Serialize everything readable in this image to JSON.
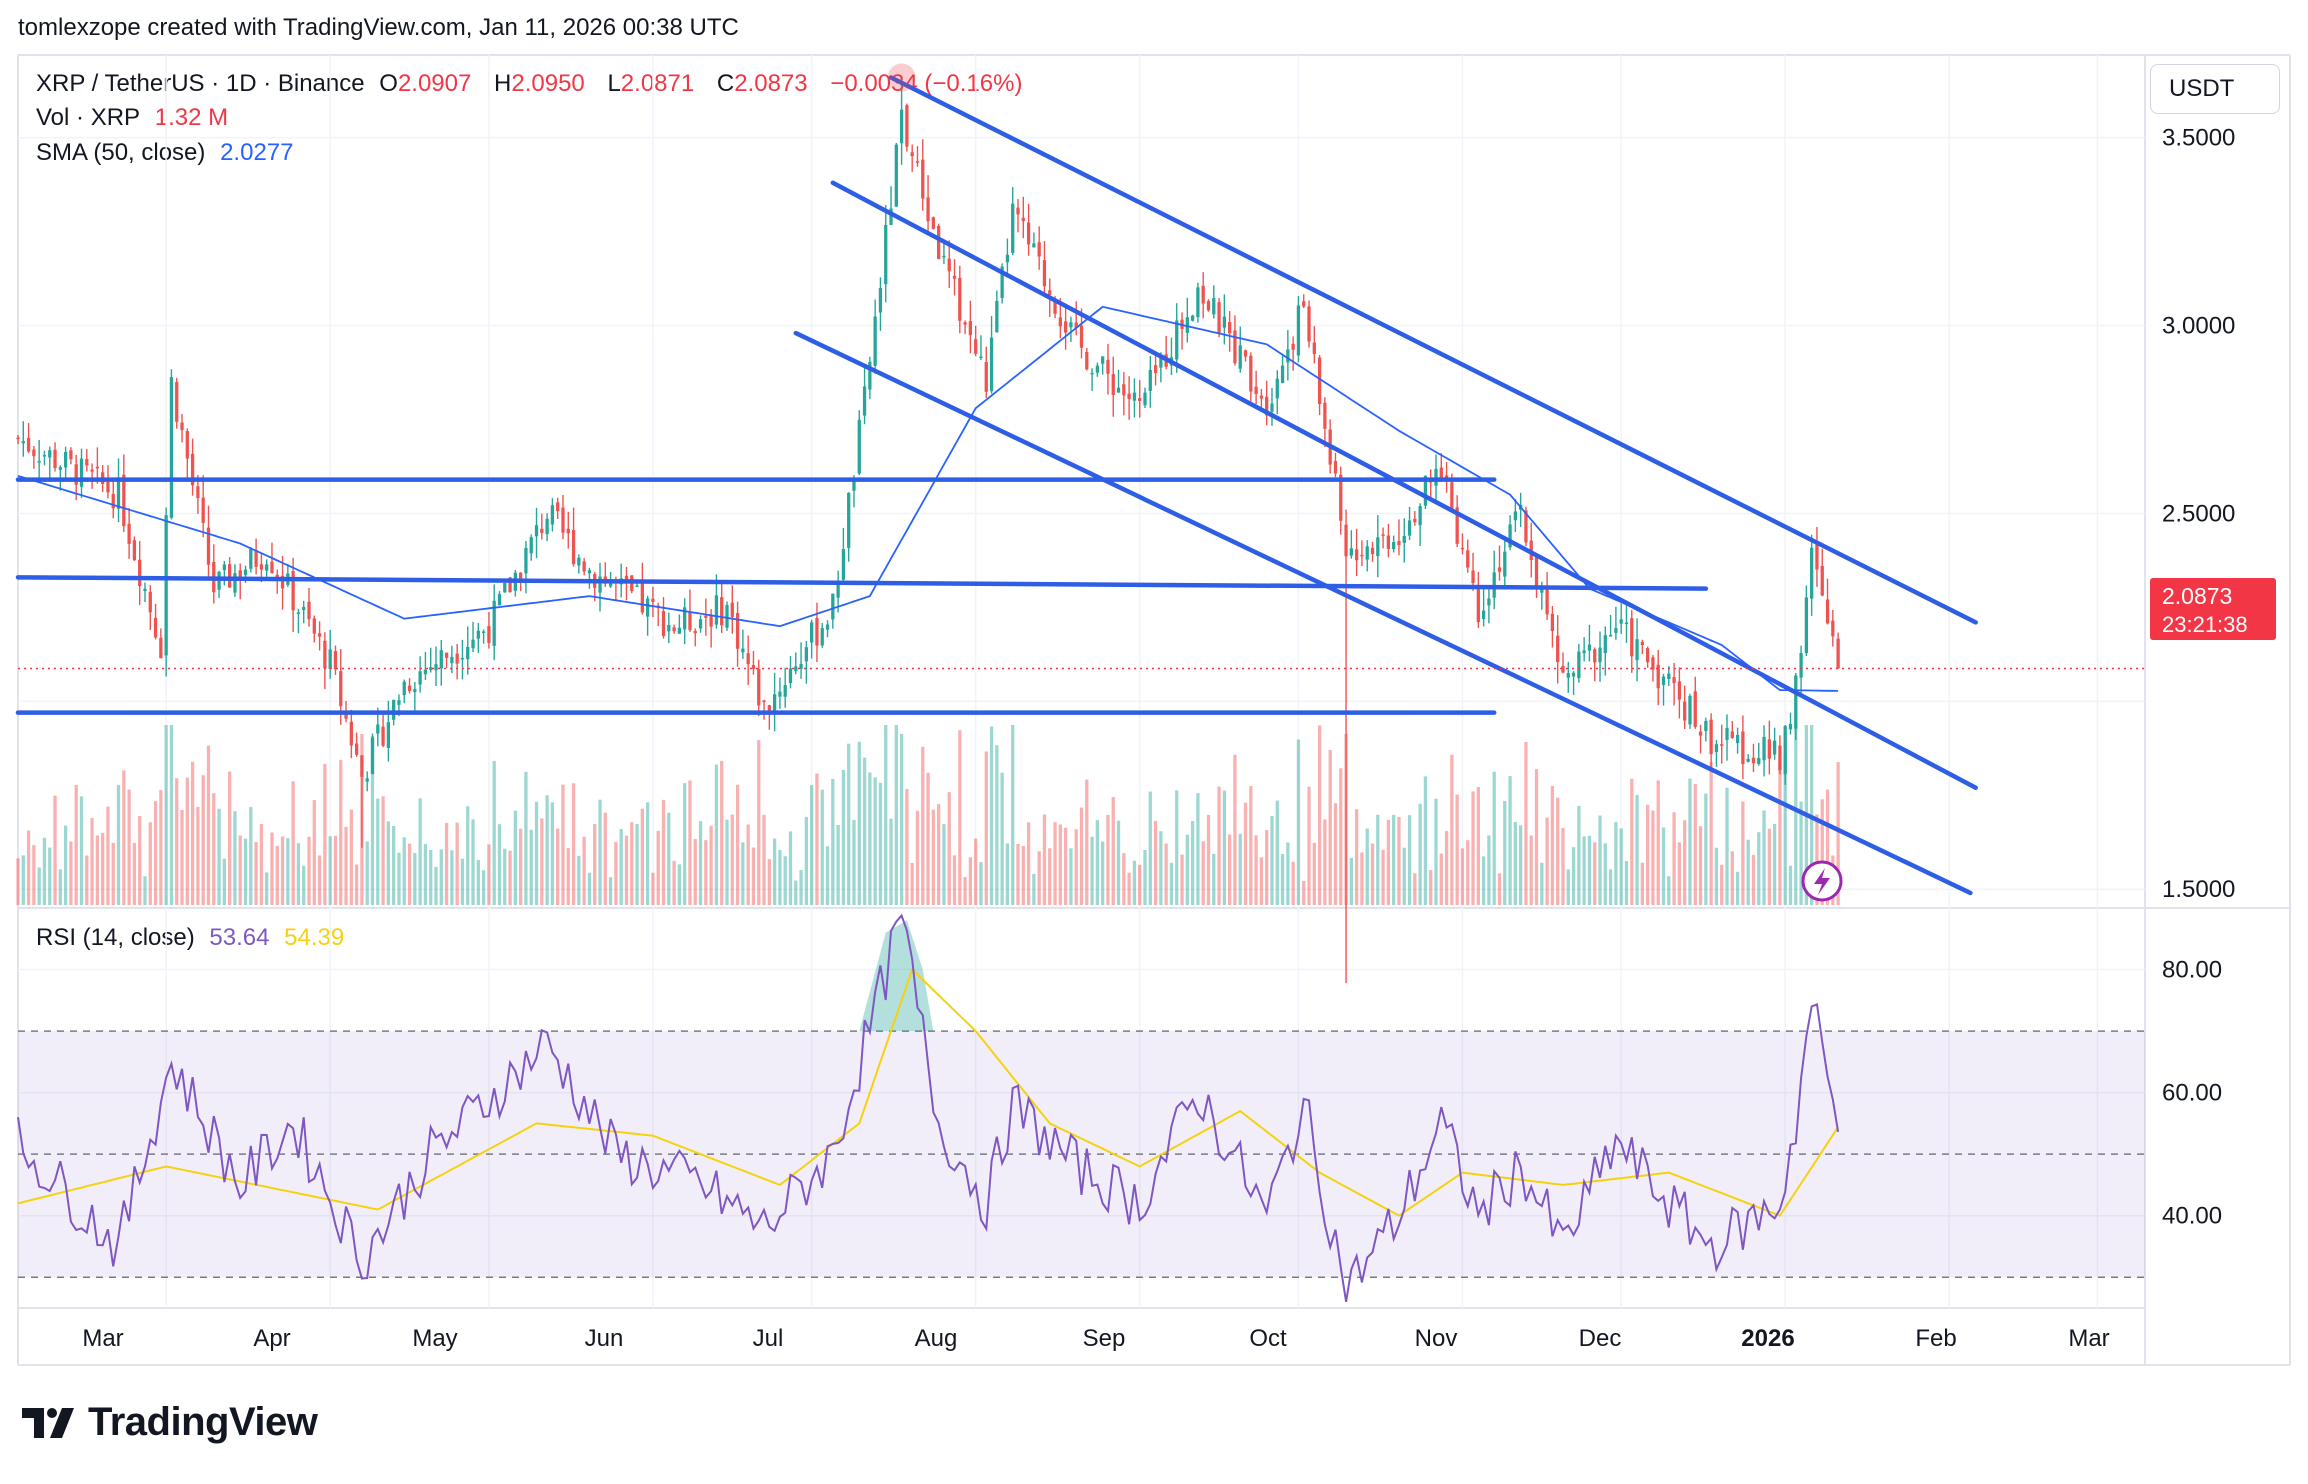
{
  "header": {
    "credit": "tomlexzope created with TradingView.com, Jan 11, 2026 00:38 UTC",
    "symbol": "XRP / TetherUS · 1D · Binance",
    "o_label": "O",
    "o_value": "2.0907",
    "h_label": "H",
    "h_value": "2.0950",
    "l_label": "L",
    "l_value": "2.0871",
    "c_label": "C",
    "c_value": "2.0873",
    "change": "−0.0034 (−0.16%)",
    "vol_label": "Vol · XRP",
    "vol_value": "1.32 M",
    "sma_label": "SMA (50, close)",
    "sma_value": "2.0277",
    "rsi_label": "RSI (14, close)",
    "rsi_value": "53.64",
    "rsi_ma_value": "54.39"
  },
  "price_axis": {
    "unit": "USDT",
    "ticks": [
      "3.5000",
      "3.0000",
      "2.5000",
      "1.5000"
    ],
    "current_price": "2.0873",
    "countdown": "23:21:38"
  },
  "rsi_axis": {
    "ticks": [
      "80.00",
      "60.00",
      "40.00"
    ]
  },
  "time_axis": {
    "labels": [
      "Mar",
      "Apr",
      "May",
      "Jun",
      "Jul",
      "Aug",
      "Sep",
      "Oct",
      "Nov",
      "Dec",
      "2026",
      "Feb",
      "Mar"
    ]
  },
  "branding": {
    "name": "TradingView"
  },
  "colors": {
    "up": "#26a69a",
    "down": "#ef5350",
    "sma": "#2962ff",
    "trendline": "#2f5ee6",
    "rsi": "#7e57c2",
    "rsi_ma": "#f5d20f",
    "price_tag": "#f23645"
  },
  "chart_data": [
    {
      "type": "candlestick",
      "title": "XRP / TetherUS · 1D · Binance",
      "x_range": [
        "2025-02-01",
        "2026-03-10"
      ],
      "y_range": [
        1.45,
        3.72
      ],
      "price_path": [
        [
          "2025-02-01",
          2.7
        ],
        [
          "2025-02-20",
          2.55
        ],
        [
          "2025-02-28",
          2.15
        ],
        [
          "2025-03-02",
          2.85
        ],
        [
          "2025-03-10",
          2.3
        ],
        [
          "2025-03-20",
          2.4
        ],
        [
          "2025-04-01",
          2.1
        ],
        [
          "2025-04-07",
          1.8
        ],
        [
          "2025-04-15",
          2.05
        ],
        [
          "2025-05-01",
          2.2
        ],
        [
          "2025-05-12",
          2.5
        ],
        [
          "2025-05-20",
          2.35
        ],
        [
          "2025-06-05",
          2.2
        ],
        [
          "2025-06-15",
          2.25
        ],
        [
          "2025-06-22",
          1.98
        ],
        [
          "2025-07-05",
          2.25
        ],
        [
          "2025-07-11",
          2.8
        ],
        [
          "2025-07-18",
          3.55
        ],
        [
          "2025-07-25",
          3.2
        ],
        [
          "2025-08-03",
          2.85
        ],
        [
          "2025-08-08",
          3.3
        ],
        [
          "2025-08-20",
          2.95
        ],
        [
          "2025-09-01",
          2.78
        ],
        [
          "2025-09-12",
          3.1
        ],
        [
          "2025-09-25",
          2.8
        ],
        [
          "2025-10-02",
          3.05
        ],
        [
          "2025-10-10",
          2.4
        ],
        [
          "2025-10-20",
          2.45
        ],
        [
          "2025-10-28",
          2.62
        ],
        [
          "2025-11-04",
          2.25
        ],
        [
          "2025-11-12",
          2.5
        ],
        [
          "2025-11-20",
          2.05
        ],
        [
          "2025-11-30",
          2.2
        ],
        [
          "2025-12-10",
          2.05
        ],
        [
          "2025-12-18",
          1.9
        ],
        [
          "2025-12-31",
          1.85
        ],
        [
          "2026-01-03",
          2.05
        ],
        [
          "2026-01-06",
          2.38
        ],
        [
          "2026-01-11",
          2.0873
        ]
      ],
      "wick_extremes": [
        {
          "date": "2025-04-07",
          "low": 1.61
        },
        {
          "date": "2025-07-18",
          "high": 3.66
        },
        {
          "date": "2025-10-10",
          "low": 1.25
        }
      ],
      "sma_50": [
        [
          "2025-02-01",
          2.6
        ],
        [
          "2025-03-15",
          2.42
        ],
        [
          "2025-04-15",
          2.22
        ],
        [
          "2025-05-20",
          2.28
        ],
        [
          "2025-06-25",
          2.2
        ],
        [
          "2025-07-12",
          2.28
        ],
        [
          "2025-08-01",
          2.78
        ],
        [
          "2025-08-25",
          3.05
        ],
        [
          "2025-09-25",
          2.95
        ],
        [
          "2025-10-20",
          2.72
        ],
        [
          "2025-11-10",
          2.55
        ],
        [
          "2025-11-25",
          2.3
        ],
        [
          "2025-12-20",
          2.15
        ],
        [
          "2025-12-31",
          2.03
        ],
        [
          "2026-01-11",
          2.0277
        ]
      ],
      "trendlines": [
        {
          "from": [
            "2025-07-16",
            3.66
          ],
          "to": [
            "2026-02-06",
            2.21
          ]
        },
        {
          "from": [
            "2025-07-05",
            3.38
          ],
          "to": [
            "2026-02-06",
            1.77
          ]
        },
        {
          "from": [
            "2025-06-28",
            2.98
          ],
          "to": [
            "2026-02-05",
            1.49
          ]
        },
        {
          "from": [
            "2025-02-01",
            2.59
          ],
          "to": [
            "2025-11-07",
            2.59
          ]
        },
        {
          "from": [
            "2025-02-01",
            2.33
          ],
          "to": [
            "2025-12-17",
            2.3
          ]
        },
        {
          "from": [
            "2025-02-01",
            1.97
          ],
          "to": [
            "2025-11-07",
            1.97
          ]
        }
      ],
      "current_price": 2.0873
    },
    {
      "type": "bar",
      "title": "Vol · XRP",
      "last_value": "1.32 M"
    },
    {
      "type": "line",
      "title": "RSI (14, close)",
      "y_range": [
        25,
        90
      ],
      "bands": [
        30,
        50,
        70
      ],
      "rsi": [
        [
          "2025-02-01",
          52
        ],
        [
          "2025-02-20",
          35
        ],
        [
          "2025-03-02",
          65
        ],
        [
          "2025-03-15",
          45
        ],
        [
          "2025-03-25",
          55
        ],
        [
          "2025-04-07",
          33
        ],
        [
          "2025-04-20",
          50
        ],
        [
          "2025-05-12",
          68
        ],
        [
          "2025-05-25",
          50
        ],
        [
          "2025-06-10",
          45
        ],
        [
          "2025-06-22",
          38
        ],
        [
          "2025-07-05",
          50
        ],
        [
          "2025-07-18",
          88
        ],
        [
          "2025-07-25",
          55
        ],
        [
          "2025-08-03",
          42
        ],
        [
          "2025-08-08",
          58
        ],
        [
          "2025-08-20",
          48
        ],
        [
          "2025-09-01",
          42
        ],
        [
          "2025-09-12",
          60
        ],
        [
          "2025-09-25",
          40
        ],
        [
          "2025-10-02",
          58
        ],
        [
          "2025-10-10",
          28
        ],
        [
          "2025-10-20",
          40
        ],
        [
          "2025-10-28",
          55
        ],
        [
          "2025-11-04",
          40
        ],
        [
          "2025-11-12",
          48
        ],
        [
          "2025-11-20",
          35
        ],
        [
          "2025-11-30",
          52
        ],
        [
          "2025-12-10",
          42
        ],
        [
          "2025-12-18",
          35
        ],
        [
          "2025-12-31",
          42
        ],
        [
          "2026-01-03",
          55
        ],
        [
          "2026-01-06",
          75
        ],
        [
          "2026-01-11",
          53.64
        ]
      ],
      "rsi_ma": [
        [
          "2025-02-01",
          42
        ],
        [
          "2025-03-01",
          48
        ],
        [
          "2025-04-10",
          41
        ],
        [
          "2025-05-10",
          55
        ],
        [
          "2025-06-01",
          53
        ],
        [
          "2025-06-25",
          45
        ],
        [
          "2025-07-10",
          55
        ],
        [
          "2025-07-20",
          80
        ],
        [
          "2025-08-01",
          70
        ],
        [
          "2025-08-15",
          55
        ],
        [
          "2025-09-01",
          48
        ],
        [
          "2025-09-20",
          57
        ],
        [
          "2025-10-05",
          47
        ],
        [
          "2025-10-20",
          40
        ],
        [
          "2025-11-01",
          47
        ],
        [
          "2025-11-20",
          45
        ],
        [
          "2025-12-10",
          47
        ],
        [
          "2025-12-31",
          40
        ],
        [
          "2026-01-11",
          54.39
        ]
      ]
    }
  ]
}
